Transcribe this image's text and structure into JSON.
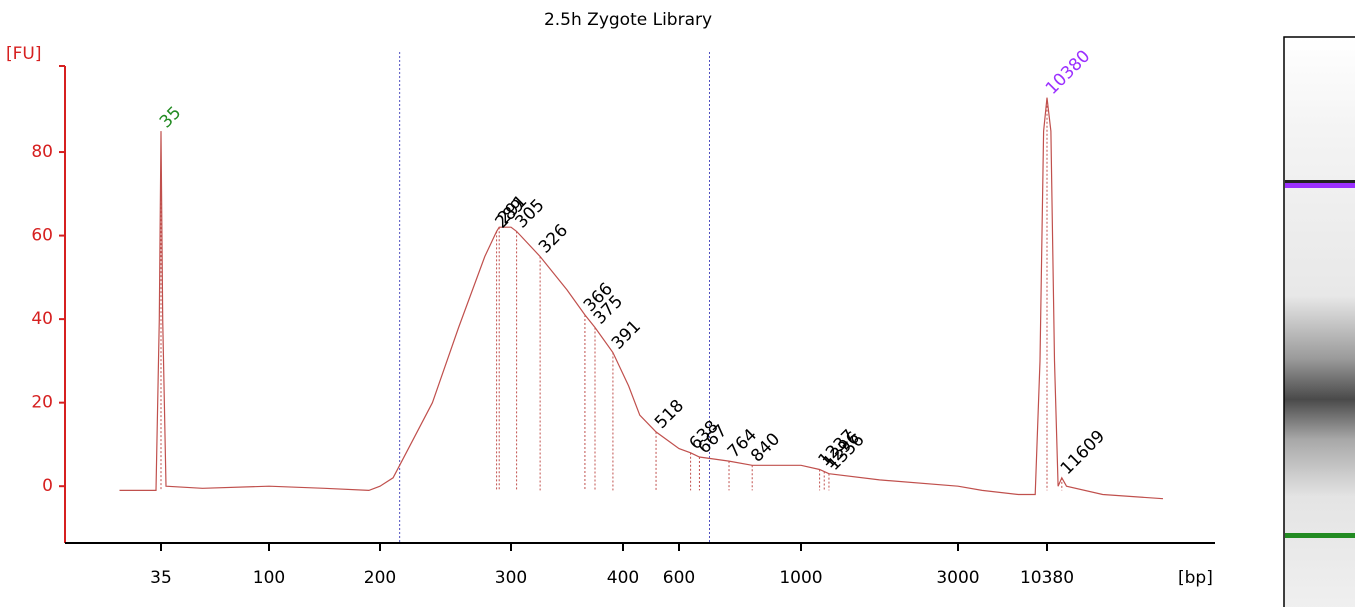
{
  "chart_data": {
    "type": "electropherogram",
    "title": "2.5h Zygote Library",
    "y_label": "[FU]",
    "x_label": "[bp]",
    "ylim": [
      -13.6,
      100.6
    ],
    "yticks": [
      0,
      20,
      40,
      60,
      80
    ],
    "xticks": [
      35,
      100,
      200,
      300,
      400,
      600,
      1000,
      3000,
      10380
    ],
    "color": "#c0504d",
    "axis_color": "#d62020",
    "x": [
      10,
      30,
      32,
      34,
      35,
      36,
      38,
      60,
      100,
      150,
      190,
      200,
      210,
      220,
      240,
      260,
      280,
      289,
      291,
      300,
      305,
      326,
      350,
      366,
      375,
      391,
      420,
      460,
      518,
      600,
      638,
      667,
      764,
      840,
      1000,
      1237,
      1356,
      2000,
      3000,
      5000,
      8000,
      9400,
      9800,
      10100,
      10380,
      10700,
      11000,
      11300,
      11609,
      12000,
      15000,
      20000
    ],
    "values": [
      -1,
      -1,
      -1,
      40,
      85,
      40,
      0,
      -0.5,
      0,
      -0.5,
      -1,
      0,
      2,
      8,
      20,
      38,
      55,
      61,
      62,
      62,
      61,
      55,
      47,
      41,
      38,
      32,
      24,
      17,
      13,
      9,
      8,
      7,
      6,
      5,
      5,
      4,
      3,
      1.5,
      0,
      -1,
      -2,
      -2,
      30,
      85,
      93,
      85,
      30,
      0,
      2,
      0,
      -2,
      -3
    ],
    "peaks": [
      35,
      289,
      291,
      305,
      326,
      366,
      375,
      391,
      518,
      638,
      667,
      764,
      840,
      1237,
      1296,
      1356,
      10380,
      11609
    ],
    "peak_colors": [
      "#228b22",
      "#000000",
      "#000000",
      "#000000",
      "#000000",
      "#000000",
      "#000000",
      "#000000",
      "#000000",
      "#000000",
      "#000000",
      "#000000",
      "#000000",
      "#000000",
      "#000000",
      "#000000",
      "#9b30ff",
      "#000000"
    ],
    "region": [
      215,
      700
    ]
  }
}
